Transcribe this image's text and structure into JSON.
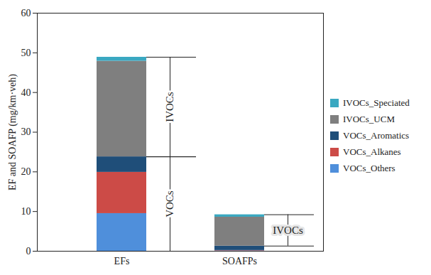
{
  "chart_data": {
    "type": "bar",
    "stacked": true,
    "categories": [
      "EFs",
      "SOAFPs"
    ],
    "ylabel": "EF and SOAFP (mg/km·veh)",
    "ylim": [
      0,
      60
    ],
    "yticks": [
      0,
      10,
      20,
      30,
      40,
      50,
      60
    ],
    "legend": "right",
    "series": [
      {
        "name": "VOCs_Others",
        "color": "#4f8fdb",
        "values": [
          9.5,
          0.1
        ]
      },
      {
        "name": "VOCs_Alkanes",
        "color": "#cc4b47",
        "values": [
          10.4,
          0.1
        ]
      },
      {
        "name": "VOCs_Aromatics",
        "color": "#1f4e79",
        "values": [
          3.9,
          1.1
        ]
      },
      {
        "name": "IVOCs_UCM",
        "color": "#7f7f7f",
        "values": [
          24.1,
          7.3
        ]
      },
      {
        "name": "IVOCs_Speciated",
        "color": "#3aa8c1",
        "values": [
          1.0,
          0.6
        ]
      }
    ],
    "annotations": [
      {
        "text": "IVOCs",
        "category": "EFs",
        "series": [
          "IVOCs_UCM",
          "IVOCs_Speciated"
        ]
      },
      {
        "text": "VOCs",
        "category": "EFs",
        "series": [
          "VOCs_Others",
          "VOCs_Alkanes",
          "VOCs_Aromatics"
        ]
      },
      {
        "text": "IVOCs",
        "category": "SOAFPs",
        "series": [
          "IVOCs_UCM",
          "IVOCs_Speciated"
        ]
      }
    ]
  }
}
